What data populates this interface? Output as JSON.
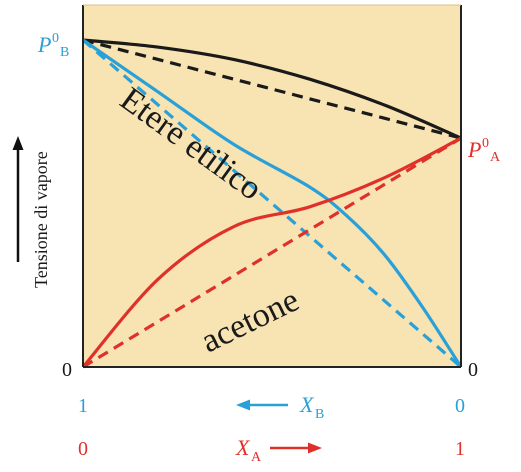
{
  "chart_data": {
    "type": "line",
    "ylabel": "Tensione di vapore",
    "labels": {
      "p0_b_main": "P",
      "p0_b_sup": "0",
      "p0_b_sub": "B",
      "p0_a_main": "P",
      "p0_a_sup": "0",
      "p0_a_sub": "A",
      "zero_left": "0",
      "zero_right": "0",
      "curve_ether": "Etere etilico",
      "curve_acetone": "acetone"
    },
    "x_axes": {
      "xb": {
        "main": "X",
        "sub": "B",
        "left": "1",
        "right": "0",
        "color": "#2aa0d8"
      },
      "xa": {
        "main": "X",
        "sub": "A",
        "left": "0",
        "right": "1",
        "color": "#e0302a"
      }
    },
    "series": [
      {
        "id": "total",
        "style": "solid",
        "color": "#1a1a1a",
        "x": [
          0,
          0.2,
          0.4,
          0.6,
          0.8,
          1.0
        ],
        "y": [
          1.0,
          0.978,
          0.94,
          0.88,
          0.8,
          0.7
        ]
      },
      {
        "id": "total-ideal",
        "style": "dashed",
        "color": "#1a1a1a",
        "x": [
          0,
          1
        ],
        "y": [
          1.0,
          0.7
        ]
      },
      {
        "id": "ether",
        "style": "solid",
        "color": "#2aa0d8",
        "x": [
          0,
          0.2,
          0.4,
          0.6,
          0.7,
          0.8,
          0.9,
          1.0
        ],
        "y": [
          1.0,
          0.84,
          0.68,
          0.55,
          0.46,
          0.34,
          0.18,
          0.0
        ]
      },
      {
        "id": "ether-ideal",
        "style": "dashed",
        "color": "#2aa0d8",
        "x": [
          0,
          1
        ],
        "y": [
          1.0,
          0.0
        ]
      },
      {
        "id": "acetone",
        "style": "solid",
        "color": "#e0302a",
        "x": [
          0,
          0.2,
          0.4,
          0.6,
          0.8,
          1.0
        ],
        "y": [
          0.0,
          0.27,
          0.43,
          0.49,
          0.58,
          0.7
        ]
      },
      {
        "id": "acetone-ideal",
        "style": "dashed",
        "color": "#e0302a",
        "x": [
          0,
          1
        ],
        "y": [
          0.0,
          0.7
        ]
      }
    ],
    "colors": {
      "background": "#f8e3b2",
      "frame": "#222222"
    }
  }
}
